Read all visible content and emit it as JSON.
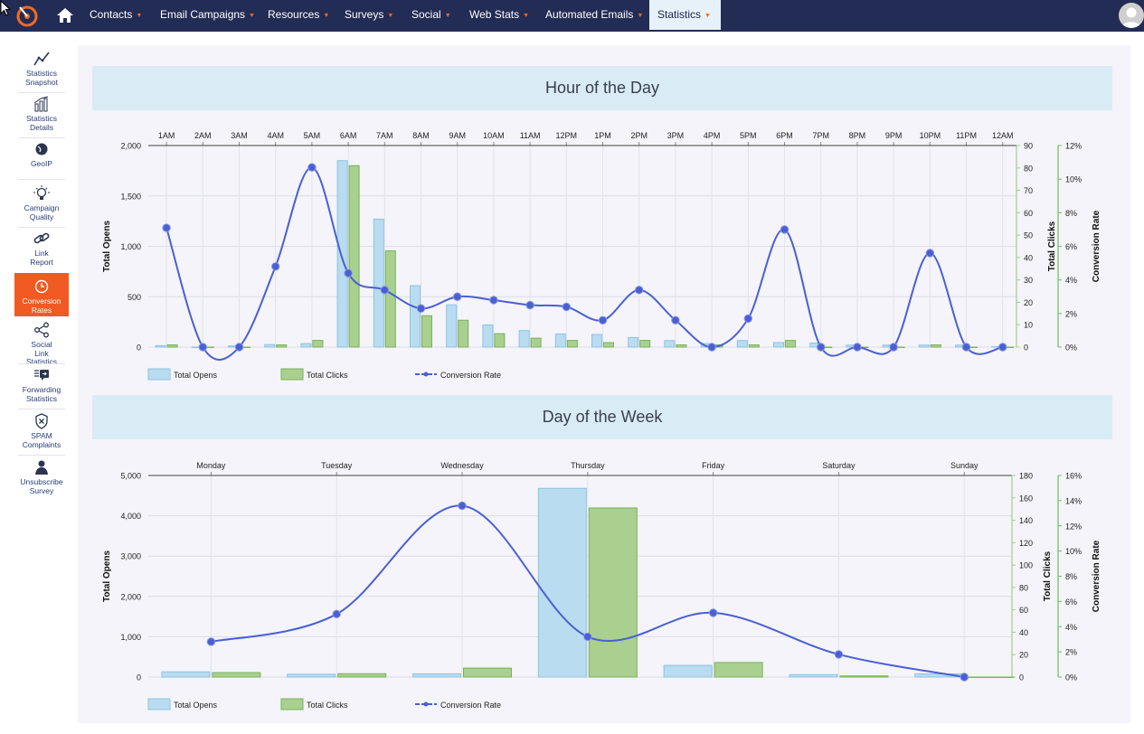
{
  "nav": {
    "items": [
      {
        "label": "Contacts"
      },
      {
        "label": "Email Campaigns"
      },
      {
        "label": "Resources"
      },
      {
        "label": "Surveys"
      },
      {
        "label": "Social"
      },
      {
        "label": "Web Stats"
      },
      {
        "label": "Automated Emails"
      },
      {
        "label": "Statistics"
      }
    ],
    "caret": "▼",
    "active": "Statistics",
    "colors": {
      "bar": "#232c55",
      "accent": "#f36b21",
      "active_bg": "#e6f1fa"
    }
  },
  "sidebar": {
    "items": [
      {
        "label1": "Statistics",
        "label2": "Snapshot",
        "icon": "line-chart-icon"
      },
      {
        "label1": "Statistics",
        "label2": "Details",
        "icon": "bar-chart-icon"
      },
      {
        "label1": "GeoIP",
        "label2": "",
        "icon": "globe-icon"
      },
      {
        "label1": "Campaign",
        "label2": "Quality",
        "icon": "lightbulb-icon"
      },
      {
        "label1": "Link",
        "label2": "Report",
        "icon": "link-icon"
      },
      {
        "label1": "Conversion",
        "label2": "Rates",
        "icon": "clock-icon"
      },
      {
        "label1": "Social",
        "label2": "Link",
        "label3": "Statistics",
        "icon": "share-icon"
      },
      {
        "label1": "Forwarding",
        "label2": "Statistics",
        "icon": "forward-icon"
      },
      {
        "label1": "SPAM",
        "label2": "Complaints",
        "icon": "spam-shield-icon"
      },
      {
        "label1": "Unsubscribe",
        "label2": "Survey",
        "icon": "user-icon"
      }
    ],
    "active_color": "#f15a22"
  },
  "panels": {
    "hour_title": "Hour of the Day",
    "week_title": "Day of the Week"
  },
  "chart_data": [
    {
      "type": "bar",
      "title": "Hour of the Day",
      "categories": [
        "1AM",
        "2AM",
        "3AM",
        "4AM",
        "5AM",
        "6AM",
        "7AM",
        "8AM",
        "9AM",
        "10AM",
        "11AM",
        "12PM",
        "1PM",
        "2PM",
        "3PM",
        "4PM",
        "5PM",
        "6PM",
        "7PM",
        "8PM",
        "9PM",
        "10PM",
        "11PM",
        "12AM"
      ],
      "series": [
        {
          "name": "Total Opens",
          "axis": "left",
          "color": "#b9dcf0",
          "values": [
            15,
            0,
            12,
            25,
            35,
            1850,
            1270,
            610,
            420,
            220,
            165,
            130,
            125,
            95,
            65,
            35,
            65,
            45,
            40,
            20,
            20,
            20,
            20,
            5
          ]
        },
        {
          "name": "Total Clicks",
          "axis": "right",
          "color": "#a9d08e",
          "values": [
            1,
            0,
            0,
            1,
            3,
            81,
            43,
            14,
            12,
            6,
            4,
            3,
            2,
            3,
            1,
            1,
            1,
            3,
            0,
            0,
            0,
            1,
            0,
            0
          ]
        },
        {
          "name": "Conversion Rate",
          "axis": "conv",
          "type": "line",
          "color": "#4a5fd3",
          "values": [
            7.1,
            0,
            0,
            4.8,
            10.7,
            4.4,
            3.4,
            2.3,
            3.0,
            2.8,
            2.5,
            2.4,
            1.6,
            3.4,
            1.6,
            0,
            1.7,
            7.0,
            0,
            0,
            0,
            5.6,
            0,
            0
          ]
        }
      ],
      "axes": {
        "left": {
          "label": "Total Opens",
          "ticks": [
            "0",
            "500",
            "1,000",
            "1,500",
            "2,000"
          ],
          "max": 2000
        },
        "right": {
          "label": "Total Clicks",
          "ticks": [
            "0",
            "10",
            "20",
            "30",
            "40",
            "50",
            "60",
            "70",
            "80",
            "90"
          ],
          "max": 90
        },
        "conv": {
          "label": "Conversion Rate",
          "ticks": [
            "0%",
            "2%",
            "4%",
            "6%",
            "8%",
            "10%",
            "12%"
          ],
          "max": 12
        }
      },
      "legend": [
        "Total Opens",
        "Total Clicks",
        "Conversion Rate"
      ],
      "legend_position": "bottom-left",
      "grid": true
    },
    {
      "type": "bar",
      "title": "Day of the Week",
      "categories": [
        "Monday",
        "Tuesday",
        "Wednesday",
        "Thursday",
        "Friday",
        "Saturday",
        "Sunday"
      ],
      "series": [
        {
          "name": "Total Opens",
          "axis": "left",
          "color": "#b9dcf0",
          "values": [
            130,
            70,
            80,
            4680,
            290,
            60,
            80
          ]
        },
        {
          "name": "Total Clicks",
          "axis": "right",
          "color": "#a9d08e",
          "values": [
            4,
            3,
            8,
            151,
            13,
            1,
            0
          ]
        },
        {
          "name": "Conversion Rate",
          "axis": "conv",
          "type": "line",
          "color": "#4a5fd3",
          "values": [
            2.8,
            5.0,
            13.6,
            3.2,
            5.1,
            1.8,
            0
          ]
        }
      ],
      "axes": {
        "left": {
          "label": "Total Opens",
          "ticks": [
            "0",
            "1,000",
            "2,000",
            "3,000",
            "4,000",
            "5,000"
          ],
          "max": 5000
        },
        "right": {
          "label": "Total Clicks",
          "ticks": [
            "0",
            "20",
            "40",
            "60",
            "80",
            "100",
            "120",
            "140",
            "160",
            "180"
          ],
          "max": 180
        },
        "conv": {
          "label": "Conversion Rate",
          "ticks": [
            "0%",
            "2%",
            "4%",
            "6%",
            "8%",
            "10%",
            "12%",
            "14%",
            "16%"
          ],
          "max": 16
        }
      },
      "legend": [
        "Total Opens",
        "Total Clicks",
        "Conversion Rate"
      ],
      "legend_position": "bottom-left",
      "grid": true
    }
  ]
}
